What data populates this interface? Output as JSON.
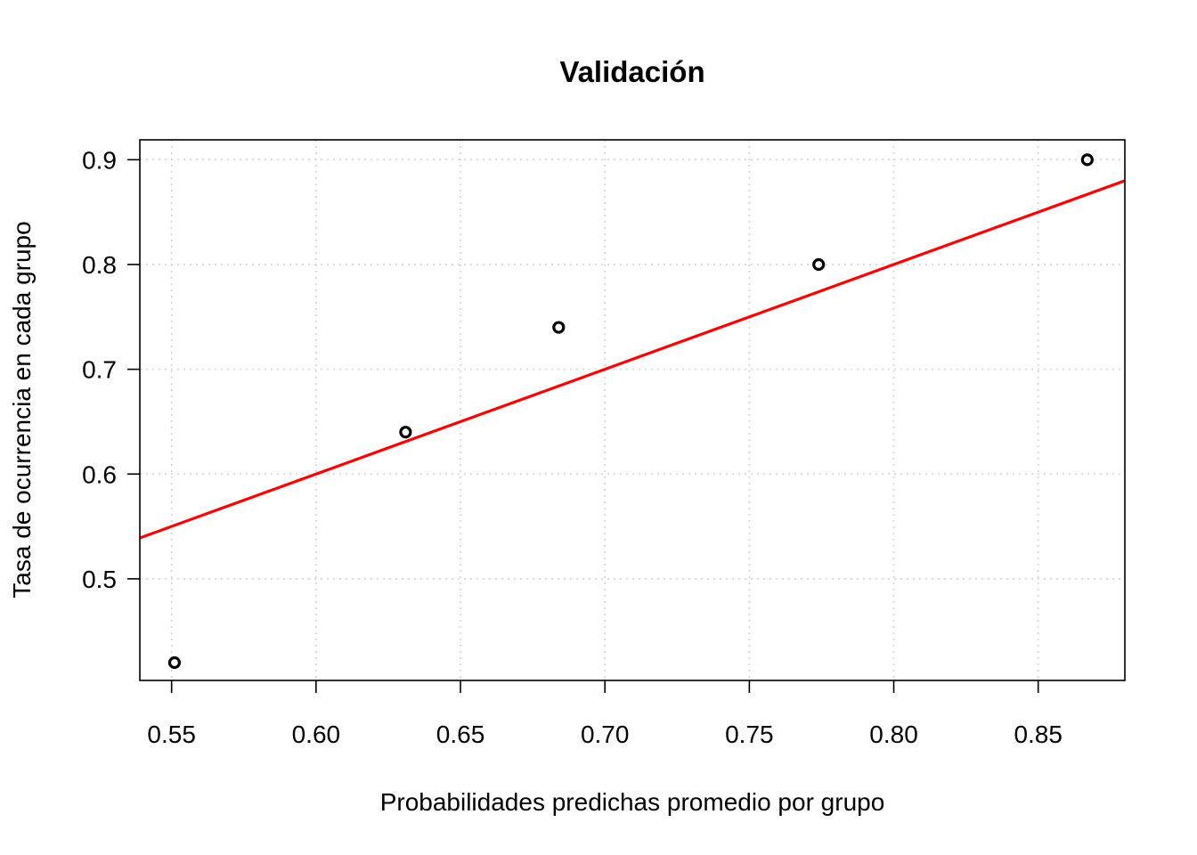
{
  "chart_data": {
    "type": "scatter",
    "title": "Validación",
    "xlabel": "Probabilidades predichas promedio por grupo",
    "ylabel": "Tasa de ocurrencia en cada grupo",
    "xlim": [
      0.539,
      0.88
    ],
    "ylim": [
      0.403,
      0.919
    ],
    "x_ticks": [
      0.55,
      0.6,
      0.65,
      0.7,
      0.75,
      0.8,
      0.85
    ],
    "x_tick_labels": [
      "0.55",
      "0.60",
      "0.65",
      "0.70",
      "0.75",
      "0.80",
      "0.85"
    ],
    "y_ticks": [
      0.5,
      0.6,
      0.7,
      0.8,
      0.9
    ],
    "y_tick_labels": [
      "0.5",
      "0.6",
      "0.7",
      "0.8",
      "0.9"
    ],
    "grid": true,
    "points": [
      {
        "x": 0.551,
        "y": 0.42
      },
      {
        "x": 0.631,
        "y": 0.64
      },
      {
        "x": 0.684,
        "y": 0.74
      },
      {
        "x": 0.774,
        "y": 0.8
      },
      {
        "x": 0.867,
        "y": 0.9
      }
    ],
    "reference_line": {
      "intercept": 0,
      "slope": 1
    },
    "colors": {
      "points": "#000000",
      "line": "#ff0000",
      "grid": "#d3d3d3"
    }
  }
}
